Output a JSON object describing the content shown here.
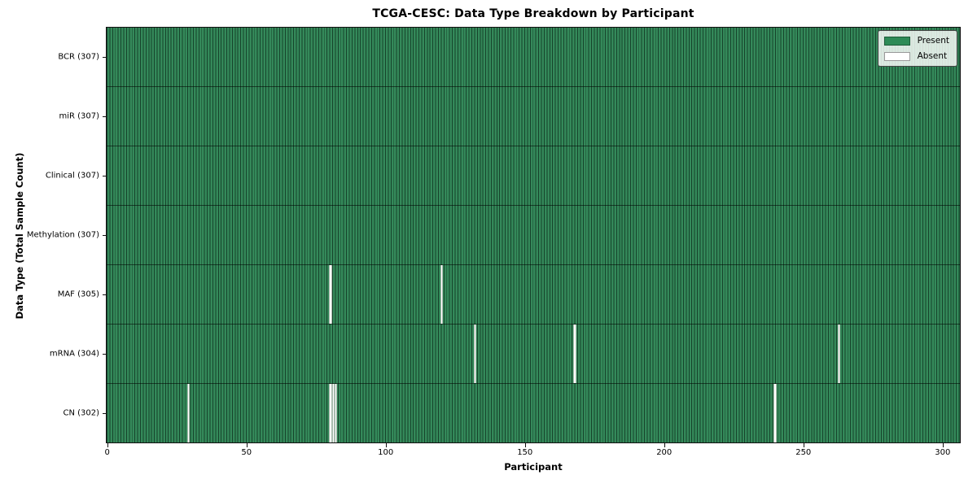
{
  "chart_data": {
    "type": "heatmap",
    "title": "TCGA-CESC: Data Type Breakdown by Participant",
    "xlabel": "Participant",
    "ylabel": "Data Type (Total Sample Count)",
    "n_participants": 307,
    "xlim": [
      0,
      307
    ],
    "x_ticks": [
      0,
      50,
      100,
      150,
      200,
      250,
      300
    ],
    "grid": false,
    "legend_position": "upper right",
    "legend": [
      {
        "label": "Present",
        "color": "#2e8b57"
      },
      {
        "label": "Absent",
        "color": "#ffffff"
      }
    ],
    "rows": [
      {
        "label": "BCR (307)",
        "data_type": "BCR",
        "present_count": 307,
        "absent_participants": []
      },
      {
        "label": "miR (307)",
        "data_type": "miR",
        "present_count": 307,
        "absent_participants": []
      },
      {
        "label": "Clinical (307)",
        "data_type": "Clinical",
        "present_count": 307,
        "absent_participants": []
      },
      {
        "label": "Methylation (307)",
        "data_type": "Methylation",
        "present_count": 307,
        "absent_participants": []
      },
      {
        "label": "MAF (305)",
        "data_type": "MAF",
        "present_count": 305,
        "absent_participants": [
          80,
          120
        ]
      },
      {
        "label": "mRNA (304)",
        "data_type": "mRNA",
        "present_count": 304,
        "absent_participants": [
          132,
          168,
          263
        ]
      },
      {
        "label": "CN (302)",
        "data_type": "CN",
        "present_count": 302,
        "absent_participants": [
          29,
          80,
          81,
          82,
          240
        ]
      }
    ],
    "colors": {
      "present_fill": "#2e8b57",
      "bar_edge": "#16432b",
      "absent_fill": "#ffffff",
      "background": "#ffffff"
    }
  }
}
